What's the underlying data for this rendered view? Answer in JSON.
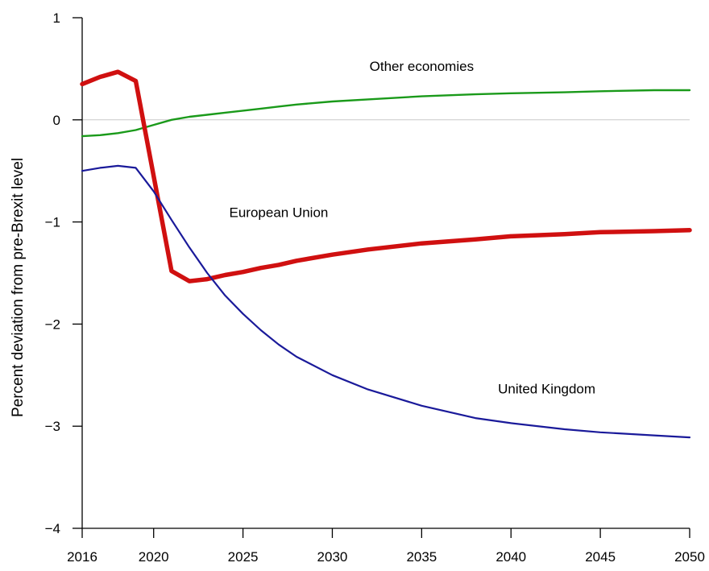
{
  "chart_data": {
    "type": "line",
    "title": "",
    "xlabel": "",
    "ylabel": "Percent deviation from pre-Brexit level",
    "xlim": [
      2016,
      2050
    ],
    "ylim": [
      -4,
      1
    ],
    "xticks": [
      2016,
      2020,
      2025,
      2030,
      2035,
      2040,
      2045,
      2050
    ],
    "yticks": [
      1,
      0,
      -1,
      -2,
      -3,
      -4
    ],
    "ytick_labels": [
      "1",
      "0",
      "−1",
      "−2",
      "−3",
      "−4"
    ],
    "reference_line": 0,
    "grid": false,
    "legend": "none",
    "series": [
      {
        "name": "Other economies",
        "color": "#1a9a1a",
        "points": [
          [
            2016,
            -0.16
          ],
          [
            2017,
            -0.15
          ],
          [
            2018,
            -0.13
          ],
          [
            2019,
            -0.1
          ],
          [
            2020,
            -0.05
          ],
          [
            2021,
            0.0
          ],
          [
            2022,
            0.03
          ],
          [
            2023,
            0.05
          ],
          [
            2024,
            0.07
          ],
          [
            2025,
            0.09
          ],
          [
            2026,
            0.11
          ],
          [
            2027,
            0.13
          ],
          [
            2028,
            0.15
          ],
          [
            2030,
            0.18
          ],
          [
            2032,
            0.2
          ],
          [
            2035,
            0.23
          ],
          [
            2038,
            0.25
          ],
          [
            2040,
            0.26
          ],
          [
            2043,
            0.27
          ],
          [
            2045,
            0.28
          ],
          [
            2048,
            0.29
          ],
          [
            2050,
            0.29
          ]
        ]
      },
      {
        "name": "European Union",
        "color": "#d01010",
        "points": [
          [
            2016,
            0.35
          ],
          [
            2017,
            0.42
          ],
          [
            2018,
            0.47
          ],
          [
            2019,
            0.38
          ],
          [
            2020,
            -0.55
          ],
          [
            2021,
            -1.48
          ],
          [
            2022,
            -1.58
          ],
          [
            2023,
            -1.56
          ],
          [
            2024,
            -1.52
          ],
          [
            2025,
            -1.49
          ],
          [
            2026,
            -1.45
          ],
          [
            2027,
            -1.42
          ],
          [
            2028,
            -1.38
          ],
          [
            2030,
            -1.32
          ],
          [
            2032,
            -1.27
          ],
          [
            2035,
            -1.21
          ],
          [
            2038,
            -1.17
          ],
          [
            2040,
            -1.14
          ],
          [
            2043,
            -1.12
          ],
          [
            2045,
            -1.1
          ],
          [
            2048,
            -1.09
          ],
          [
            2050,
            -1.08
          ]
        ]
      },
      {
        "name": "United Kingdom",
        "color": "#1a1a9a",
        "points": [
          [
            2016,
            -0.5
          ],
          [
            2017,
            -0.47
          ],
          [
            2018,
            -0.45
          ],
          [
            2019,
            -0.47
          ],
          [
            2020,
            -0.7
          ],
          [
            2021,
            -0.98
          ],
          [
            2022,
            -1.25
          ],
          [
            2023,
            -1.5
          ],
          [
            2024,
            -1.72
          ],
          [
            2025,
            -1.9
          ],
          [
            2026,
            -2.06
          ],
          [
            2027,
            -2.2
          ],
          [
            2028,
            -2.32
          ],
          [
            2030,
            -2.5
          ],
          [
            2032,
            -2.64
          ],
          [
            2035,
            -2.8
          ],
          [
            2038,
            -2.92
          ],
          [
            2040,
            -2.97
          ],
          [
            2043,
            -3.03
          ],
          [
            2045,
            -3.06
          ],
          [
            2048,
            -3.09
          ],
          [
            2050,
            -3.11
          ]
        ]
      }
    ],
    "annotations": [
      {
        "text": "Other economies",
        "x": 2035,
        "y": 0.48,
        "series": "Other economies"
      },
      {
        "text": "European Union",
        "x": 2027,
        "y": -0.95,
        "series": "European Union"
      },
      {
        "text": "United Kingdom",
        "x": 2042,
        "y": -2.68,
        "series": "United Kingdom"
      }
    ]
  }
}
